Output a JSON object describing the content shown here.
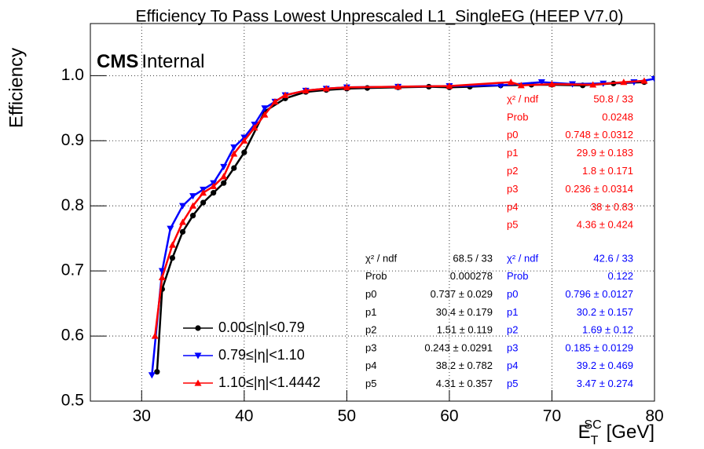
{
  "chart_data": {
    "type": "scatter",
    "title": "Efficiency To Pass Lowest Unprescaled L1_SingleEG (HEEP V7.0)",
    "y_label": "Efficiency",
    "x_label": {
      "base": "E",
      "sub": "T",
      "sup": "SC",
      "unit": "[GeV]"
    },
    "badge": {
      "bold": "CMS",
      "plain": "Internal"
    },
    "xlim": [
      25,
      80
    ],
    "ylim": [
      0.5,
      1.08
    ],
    "xticks": [
      30,
      40,
      50,
      60,
      70,
      80
    ],
    "yticks": [
      0.5,
      0.6,
      0.7,
      0.8,
      0.9,
      {
        "value": 1,
        "label": "1.0"
      }
    ],
    "grid": true,
    "series": [
      {
        "name": "0.00≤|η|<0.79",
        "color": "#000000",
        "marker": "circle",
        "x": [
          31.5,
          32,
          33,
          34,
          35,
          36,
          37,
          38,
          39,
          40,
          42,
          44,
          46,
          48,
          50,
          52,
          55,
          58,
          60,
          62,
          65,
          68,
          70,
          73,
          76,
          79
        ],
        "values": [
          0.545,
          0.672,
          0.72,
          0.76,
          0.785,
          0.805,
          0.82,
          0.835,
          0.858,
          0.882,
          0.945,
          0.965,
          0.975,
          0.978,
          0.98,
          0.981,
          0.982,
          0.983,
          0.982,
          0.983,
          0.985,
          0.986,
          0.986,
          0.985,
          0.988,
          0.99
        ]
      },
      {
        "name": "0.79≤|η|<1.10",
        "color": "#0000ff",
        "marker": "triangle-down",
        "x": [
          31,
          32,
          32.8,
          34,
          35,
          36,
          37,
          38,
          39,
          40,
          41,
          42,
          43,
          44,
          46,
          48,
          50,
          55,
          60,
          65,
          69,
          72,
          75,
          78,
          80
        ],
        "values": [
          0.54,
          0.7,
          0.765,
          0.8,
          0.815,
          0.825,
          0.835,
          0.86,
          0.89,
          0.905,
          0.925,
          0.95,
          0.96,
          0.97,
          0.977,
          0.98,
          0.982,
          0.983,
          0.984,
          0.985,
          0.99,
          0.987,
          0.988,
          0.99,
          0.995
        ]
      },
      {
        "name": "1.10≤|η|<1.4442",
        "color": "#ff0000",
        "marker": "triangle-up",
        "x": [
          31.3,
          32,
          33,
          34,
          35,
          36,
          37,
          38,
          39,
          40,
          41,
          42,
          43,
          44,
          46,
          48,
          50,
          55,
          60,
          66,
          67,
          70,
          74,
          77,
          79
        ],
        "values": [
          0.6,
          0.69,
          0.74,
          0.775,
          0.8,
          0.82,
          0.83,
          0.845,
          0.88,
          0.9,
          0.92,
          0.94,
          0.96,
          0.97,
          0.977,
          0.98,
          0.982,
          0.983,
          0.984,
          0.99,
          0.985,
          0.987,
          0.986,
          0.99,
          0.992
        ]
      }
    ],
    "stat_boxes": [
      {
        "color": "#ff0000",
        "rows": [
          [
            "χ² / ndf",
            "50.8 / 33"
          ],
          [
            "Prob",
            "0.0248"
          ],
          [
            "p0",
            "0.748 ± 0.0312"
          ],
          [
            "p1",
            "29.9 ± 0.183"
          ],
          [
            "p2",
            "1.8 ± 0.171"
          ],
          [
            "p3",
            "0.236 ± 0.0314"
          ],
          [
            "p4",
            "38 ±  0.83"
          ],
          [
            "p5",
            "4.36 ± 0.424"
          ]
        ]
      },
      {
        "color": "#000000",
        "rows": [
          [
            "χ² / ndf",
            "68.5 / 33"
          ],
          [
            "Prob",
            "0.000278"
          ],
          [
            "p0",
            "0.737 ± 0.029"
          ],
          [
            "p1",
            "30.4 ± 0.179"
          ],
          [
            "p2",
            "1.51 ± 0.119"
          ],
          [
            "p3",
            "0.243 ± 0.0291"
          ],
          [
            "p4",
            "38.2 ± 0.782"
          ],
          [
            "p5",
            "4.31 ± 0.357"
          ]
        ]
      },
      {
        "color": "#0000ff",
        "rows": [
          [
            "χ² / ndf",
            "42.6 / 33"
          ],
          [
            "Prob",
            "0.122"
          ],
          [
            "p0",
            "0.796 ± 0.0127"
          ],
          [
            "p1",
            "30.2 ± 0.157"
          ],
          [
            "p2",
            "1.69 ±  0.12"
          ],
          [
            "p3",
            "0.185 ± 0.0129"
          ],
          [
            "p4",
            "39.2 ± 0.469"
          ],
          [
            "p5",
            "3.47 ± 0.274"
          ]
        ]
      }
    ]
  }
}
